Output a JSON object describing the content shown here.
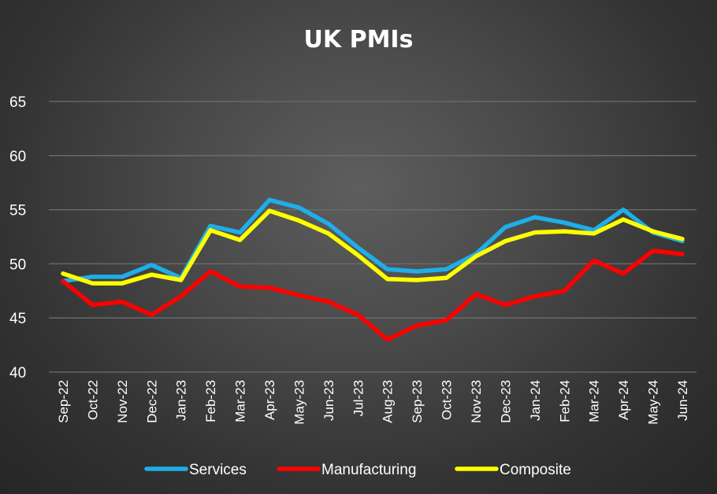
{
  "chart_data": {
    "type": "line",
    "title": "UK PMIs",
    "xlabel": "",
    "ylabel": "",
    "ylim": [
      40,
      65
    ],
    "yticks": [
      40,
      45,
      50,
      55,
      60,
      65
    ],
    "grid": true,
    "legend_position": "bottom",
    "categories": [
      "Sep-22",
      "Oct-22",
      "Nov-22",
      "Dec-22",
      "Jan-23",
      "Feb-23",
      "Mar-23",
      "Apr-23",
      "May-23",
      "Jun-23",
      "Jul-23",
      "Aug-23",
      "Sep-23",
      "Oct-23",
      "Nov-23",
      "Dec-23",
      "Jan-24",
      "Feb-24",
      "Mar-24",
      "Apr-24",
      "May-24",
      "Jun-24"
    ],
    "series": [
      {
        "name": "Services",
        "color": "#1eaee8",
        "values": [
          48.4,
          48.8,
          48.8,
          49.9,
          48.7,
          53.5,
          52.9,
          55.9,
          55.2,
          53.7,
          51.5,
          49.5,
          49.3,
          49.5,
          50.9,
          53.4,
          54.3,
          53.8,
          53.1,
          55.0,
          52.9,
          52.1
        ]
      },
      {
        "name": "Manufacturing",
        "color": "#ff0000",
        "values": [
          48.4,
          46.2,
          46.5,
          45.3,
          47.0,
          49.3,
          47.9,
          47.8,
          47.1,
          46.5,
          45.3,
          43.0,
          44.3,
          44.8,
          47.2,
          46.2,
          47.0,
          47.5,
          50.3,
          49.1,
          51.2,
          50.9
        ]
      },
      {
        "name": "Composite",
        "color": "#ffff00",
        "values": [
          49.1,
          48.2,
          48.2,
          49.0,
          48.5,
          53.1,
          52.2,
          54.9,
          54.0,
          52.8,
          50.8,
          48.6,
          48.5,
          48.7,
          50.7,
          52.1,
          52.9,
          53.0,
          52.8,
          54.1,
          53.0,
          52.3
        ]
      }
    ]
  }
}
